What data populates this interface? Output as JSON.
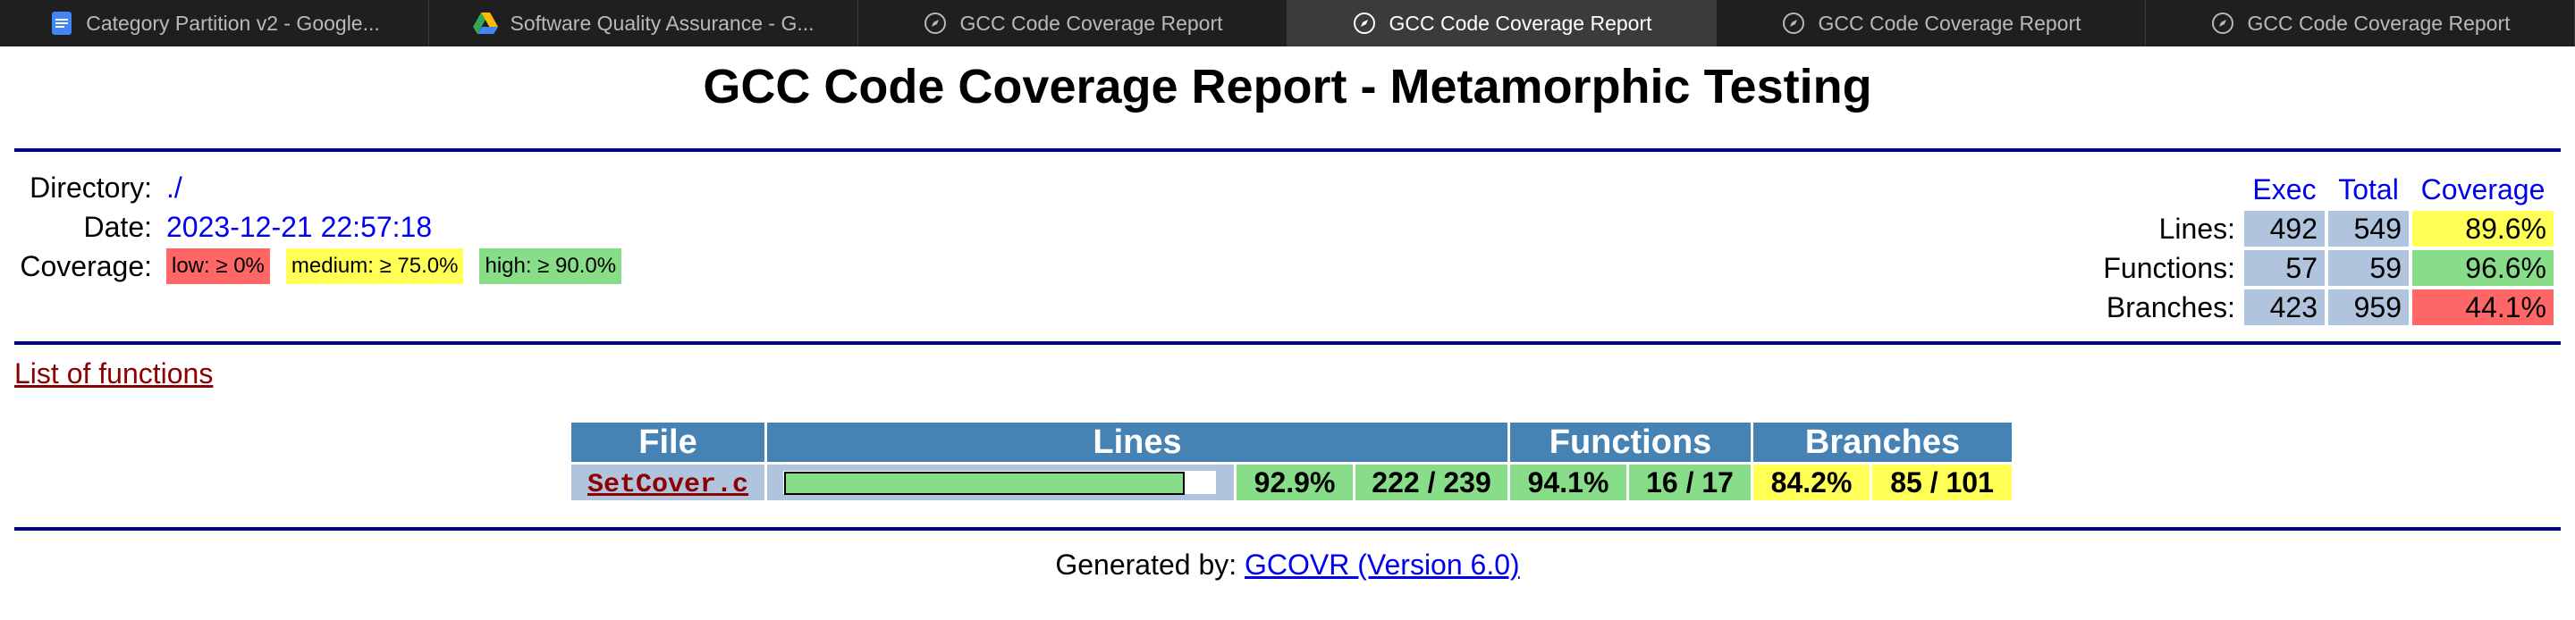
{
  "browser": {
    "tabs": [
      {
        "label": "Category Partition v2 - Google...",
        "icon": "google-docs-icon",
        "active": false
      },
      {
        "label": "Software Quality Assurance - G...",
        "icon": "google-drive-icon",
        "active": false
      },
      {
        "label": "GCC Code Coverage Report",
        "icon": "compass-icon",
        "active": false
      },
      {
        "label": "GCC Code Coverage Report",
        "icon": "compass-icon",
        "active": true
      },
      {
        "label": "GCC Code Coverage Report",
        "icon": "compass-icon",
        "active": false
      },
      {
        "label": "GCC Code Coverage Report",
        "icon": "compass-icon",
        "active": false
      }
    ]
  },
  "report": {
    "title": "GCC Code Coverage Report - Metamorphic Testing",
    "info": {
      "directory_label": "Directory:",
      "directory_value": "./",
      "date_label": "Date:",
      "date_value": "2023-12-21 22:57:18",
      "coverage_label": "Coverage:",
      "legend": {
        "low": "low: ≥ 0%",
        "medium": "medium: ≥ 75.0%",
        "high": "high: ≥ 90.0%"
      }
    },
    "summary": {
      "headers": {
        "exec": "Exec",
        "total": "Total",
        "coverage": "Coverage"
      },
      "rows": [
        {
          "label": "Lines:",
          "exec": "492",
          "total": "549",
          "coverage": "89.6%",
          "level": "medium"
        },
        {
          "label": "Functions:",
          "exec": "57",
          "total": "59",
          "coverage": "96.6%",
          "level": "high"
        },
        {
          "label": "Branches:",
          "exec": "423",
          "total": "959",
          "coverage": "44.1%",
          "level": "low"
        }
      ]
    },
    "functions_link": "List of functions",
    "file_table": {
      "headers": {
        "file": "File",
        "lines": "Lines",
        "functions": "Functions",
        "branches": "Branches"
      },
      "rows": [
        {
          "file": "SetCover.c",
          "line_fraction": 0.929,
          "lines_percent": "92.9%",
          "lines_ratio": "222 / 239",
          "functions_percent": "94.1%",
          "functions_ratio": "16 / 17",
          "branches_percent": "84.2%",
          "branches_ratio": "85 / 101"
        }
      ]
    },
    "footer": {
      "prefix": "Generated by:",
      "link": "GCOVR (Version 6.0)"
    }
  },
  "colors": {
    "low": "#ff6666",
    "medium": "#ffff55",
    "high": "#88dd88",
    "header_bg": "#4682b4",
    "cell_bg": "#b0c4de",
    "rule": "#000080"
  }
}
